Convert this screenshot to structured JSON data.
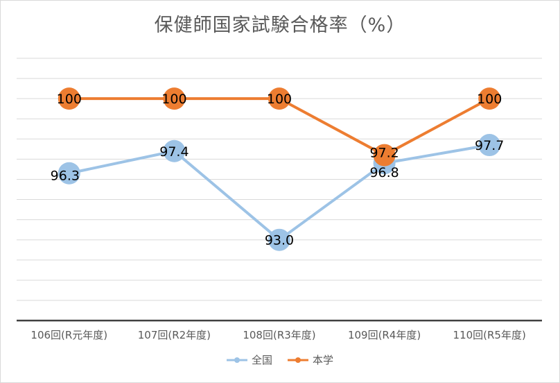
{
  "chart_data": {
    "type": "line",
    "title": "保健師国家試験合格率（%）",
    "categories": [
      "106回(R元年度)",
      "107回(R2年度)",
      "108回(R3年度)",
      "109回(R4年度)",
      "110回(R5年度)"
    ],
    "series": [
      {
        "name": "全国",
        "values": [
          96.3,
          97.4,
          93.0,
          96.8,
          97.7
        ],
        "labels": [
          "96.3",
          "97.4",
          "93.0",
          "96.8",
          "97.7"
        ],
        "color": "#9dc3e6"
      },
      {
        "name": "本学",
        "values": [
          100,
          100,
          100,
          97.2,
          100
        ],
        "labels": [
          "100",
          "100",
          "100",
          "97.2",
          "100"
        ],
        "color": "#ed7d31"
      }
    ],
    "ylim": [
      89,
      102
    ],
    "grid": true,
    "legend_position": "bottom"
  }
}
